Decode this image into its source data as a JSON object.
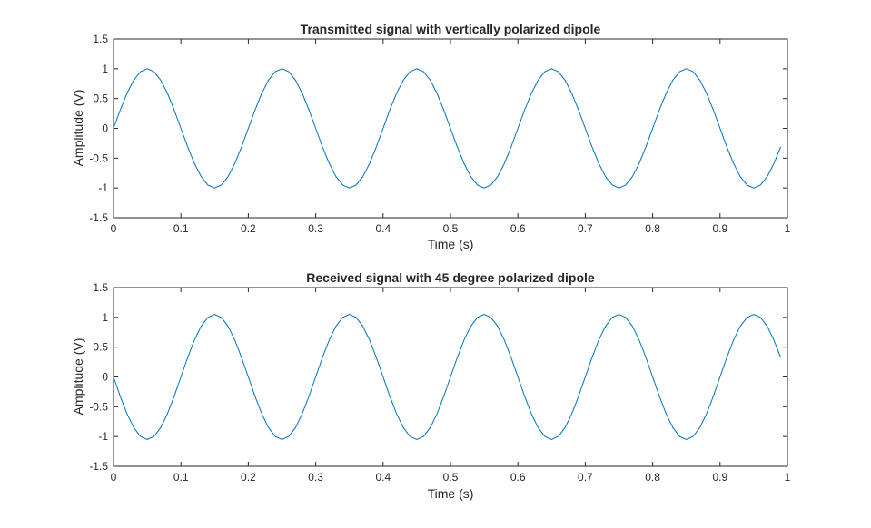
{
  "chart_data": [
    {
      "type": "line",
      "title": "Transmitted signal with vertically polarized dipole",
      "xlabel": "Time (s)",
      "ylabel": "Amplitude (V)",
      "xlim": [
        0,
        1
      ],
      "ylim": [
        -1.5,
        1.5
      ],
      "xticks": [
        "0",
        "0.1",
        "0.2",
        "0.3",
        "0.4",
        "0.5",
        "0.6",
        "0.7",
        "0.8",
        "0.9",
        "1"
      ],
      "yticks": [
        "-1.5",
        "-1",
        "-0.5",
        "0",
        "0.5",
        "1",
        "1.5"
      ],
      "grid": false,
      "color": "#0072BD",
      "series": [
        {
          "x": [
            0,
            0.01,
            0.02,
            0.03,
            0.04,
            0.05,
            0.06,
            0.07,
            0.08,
            0.09,
            0.1,
            0.11,
            0.12,
            0.13,
            0.14,
            0.15,
            0.16,
            0.17,
            0.18,
            0.19,
            0.2,
            0.21,
            0.22,
            0.23,
            0.24,
            0.25,
            0.26,
            0.27,
            0.28,
            0.29,
            0.3,
            0.31,
            0.32,
            0.33,
            0.34,
            0.35,
            0.36,
            0.37,
            0.38,
            0.39,
            0.4,
            0.41,
            0.42,
            0.43,
            0.44,
            0.45,
            0.46,
            0.47,
            0.48,
            0.49,
            0.5,
            0.51,
            0.52,
            0.53,
            0.54,
            0.55,
            0.56,
            0.57,
            0.58,
            0.59,
            0.6,
            0.61,
            0.62,
            0.63,
            0.64,
            0.65,
            0.66,
            0.67,
            0.68,
            0.69,
            0.7,
            0.71,
            0.72,
            0.73,
            0.74,
            0.75,
            0.76,
            0.77,
            0.78,
            0.79,
            0.8,
            0.81,
            0.82,
            0.83,
            0.84,
            0.85,
            0.86,
            0.87,
            0.88,
            0.89,
            0.9,
            0.91,
            0.92,
            0.93,
            0.94,
            0.95,
            0.96,
            0.97,
            0.98,
            0.99
          ],
          "y": [
            0,
            0.309,
            0.588,
            0.809,
            0.951,
            1,
            0.951,
            0.809,
            0.588,
            0.309,
            0,
            -0.309,
            -0.588,
            -0.809,
            -0.951,
            -1,
            -0.951,
            -0.809,
            -0.588,
            -0.309,
            0,
            0.309,
            0.588,
            0.809,
            0.951,
            1,
            0.951,
            0.809,
            0.588,
            0.309,
            0,
            -0.309,
            -0.588,
            -0.809,
            -0.951,
            -1,
            -0.951,
            -0.809,
            -0.588,
            -0.309,
            0,
            0.309,
            0.588,
            0.809,
            0.951,
            1,
            0.951,
            0.809,
            0.588,
            0.309,
            0,
            -0.309,
            -0.588,
            -0.809,
            -0.951,
            -1,
            -0.951,
            -0.809,
            -0.588,
            -0.309,
            0,
            0.309,
            0.588,
            0.809,
            0.951,
            1,
            0.951,
            0.809,
            0.588,
            0.309,
            0,
            -0.309,
            -0.588,
            -0.809,
            -0.951,
            -1,
            -0.951,
            -0.809,
            -0.588,
            -0.309,
            0,
            0.309,
            0.588,
            0.809,
            0.951,
            1,
            0.951,
            0.809,
            0.588,
            0.309,
            0,
            -0.309,
            -0.588,
            -0.809,
            -0.951,
            -1,
            -0.951,
            -0.809,
            -0.588,
            -0.309
          ]
        }
      ]
    },
    {
      "type": "line",
      "title": "Received signal with 45 degree polarized dipole",
      "xlabel": "Time (s)",
      "ylabel": "Amplitude (V)",
      "xlim": [
        0,
        1
      ],
      "ylim": [
        -1.5,
        1.5
      ],
      "xticks": [
        "0",
        "0.1",
        "0.2",
        "0.3",
        "0.4",
        "0.5",
        "0.6",
        "0.7",
        "0.8",
        "0.9",
        "1"
      ],
      "yticks": [
        "-1.5",
        "-1",
        "-0.5",
        "0",
        "0.5",
        "1",
        "1.5"
      ],
      "grid": false,
      "color": "#0072BD",
      "series": [
        {
          "x": [
            0,
            0.01,
            0.02,
            0.03,
            0.04,
            0.05,
            0.06,
            0.07,
            0.08,
            0.09,
            0.1,
            0.11,
            0.12,
            0.13,
            0.14,
            0.15,
            0.16,
            0.17,
            0.18,
            0.19,
            0.2,
            0.21,
            0.22,
            0.23,
            0.24,
            0.25,
            0.26,
            0.27,
            0.28,
            0.29,
            0.3,
            0.31,
            0.32,
            0.33,
            0.34,
            0.35,
            0.36,
            0.37,
            0.38,
            0.39,
            0.4,
            0.41,
            0.42,
            0.43,
            0.44,
            0.45,
            0.46,
            0.47,
            0.48,
            0.49,
            0.5,
            0.51,
            0.52,
            0.53,
            0.54,
            0.55,
            0.56,
            0.57,
            0.58,
            0.59,
            0.6,
            0.61,
            0.62,
            0.63,
            0.64,
            0.65,
            0.66,
            0.67,
            0.68,
            0.69,
            0.7,
            0.71,
            0.72,
            0.73,
            0.74,
            0.75,
            0.76,
            0.77,
            0.78,
            0.79,
            0.8,
            0.81,
            0.82,
            0.83,
            0.84,
            0.85,
            0.86,
            0.87,
            0.88,
            0.89,
            0.9,
            0.91,
            0.92,
            0.93,
            0.94,
            0.95,
            0.96,
            0.97,
            0.98,
            0.99
          ],
          "y": [
            0,
            -0.325,
            -0.618,
            -0.85,
            -0.999,
            -1.05,
            -0.999,
            -0.85,
            -0.618,
            -0.325,
            0,
            0.325,
            0.618,
            0.85,
            0.999,
            1.05,
            0.999,
            0.85,
            0.618,
            0.325,
            0,
            -0.325,
            -0.618,
            -0.85,
            -0.999,
            -1.05,
            -0.999,
            -0.85,
            -0.618,
            -0.325,
            0,
            0.325,
            0.618,
            0.85,
            0.999,
            1.05,
            0.999,
            0.85,
            0.618,
            0.325,
            0,
            -0.325,
            -0.618,
            -0.85,
            -0.999,
            -1.05,
            -0.999,
            -0.85,
            -0.618,
            -0.325,
            0,
            0.325,
            0.618,
            0.85,
            0.999,
            1.05,
            0.999,
            0.85,
            0.618,
            0.325,
            0,
            -0.325,
            -0.618,
            -0.85,
            -0.999,
            -1.05,
            -0.999,
            -0.85,
            -0.618,
            -0.325,
            0,
            0.325,
            0.618,
            0.85,
            0.999,
            1.05,
            0.999,
            0.85,
            0.618,
            0.325,
            0,
            -0.325,
            -0.618,
            -0.85,
            -0.999,
            -1.05,
            -0.999,
            -0.85,
            -0.618,
            -0.325,
            0,
            0.325,
            0.618,
            0.85,
            0.999,
            1.05,
            0.999,
            0.85,
            0.618,
            0.325
          ]
        }
      ]
    }
  ]
}
